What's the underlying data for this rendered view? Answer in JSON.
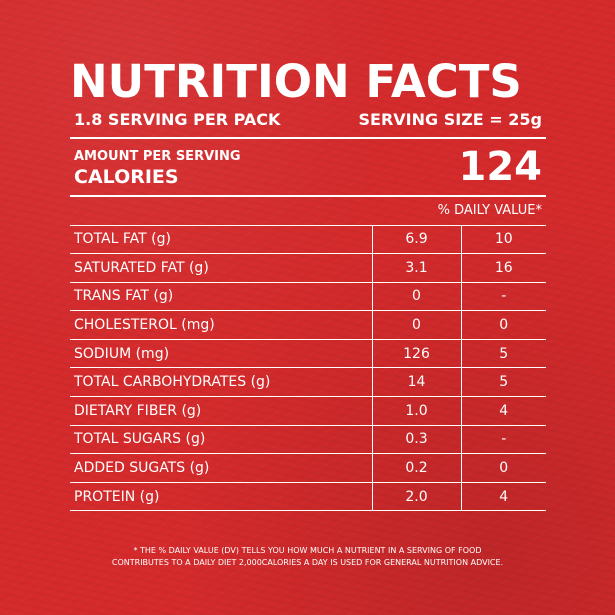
{
  "title": "NUTRITION FACTS",
  "serving": {
    "per_pack": "1.8 SERVING PER PACK",
    "size": "SERVING SIZE = 25g"
  },
  "amount": {
    "label": "AMOUNT PER SERVING",
    "calories_label": "CALORIES",
    "calories_value": "124"
  },
  "dv_header": "% DAILY VALUE*",
  "rows": [
    {
      "name": "TOTAL FAT (g)",
      "amount": "6.9",
      "dv": "10"
    },
    {
      "name": "SATURATED FAT (g)",
      "amount": "3.1",
      "dv": "16"
    },
    {
      "name": "TRANS FAT (g)",
      "amount": "0",
      "dv": "-"
    },
    {
      "name": "CHOLESTEROL (mg)",
      "amount": "0",
      "dv": "0"
    },
    {
      "name": "SODIUM (mg)",
      "amount": "126",
      "dv": "5"
    },
    {
      "name": "TOTAL CARBOHYDRATES (g)",
      "amount": "14",
      "dv": "5"
    },
    {
      "name": "DIETARY FIBER (g)",
      "amount": "1.0",
      "dv": "4"
    },
    {
      "name": "TOTAL SUGARS (g)",
      "amount": "0.3",
      "dv": "-"
    },
    {
      "name": "ADDED SUGATS (g)",
      "amount": "0.2",
      "dv": "0"
    },
    {
      "name": "PROTEIN (g)",
      "amount": "2.0",
      "dv": "4"
    }
  ],
  "footnote": {
    "line1": "* THE % DAILY VALUE (DV) TELLS YOU HOW MUCH A NUTRIENT IN A SERVING OF FOOD",
    "line2": "CONTRIBUTES TO A DAILY DIET 2,000CALORIES A DAY IS USED FOR GENERAL NUTRITION ADVICE."
  },
  "colors": {
    "background": "#d42a2c",
    "text": "#ffffff"
  }
}
